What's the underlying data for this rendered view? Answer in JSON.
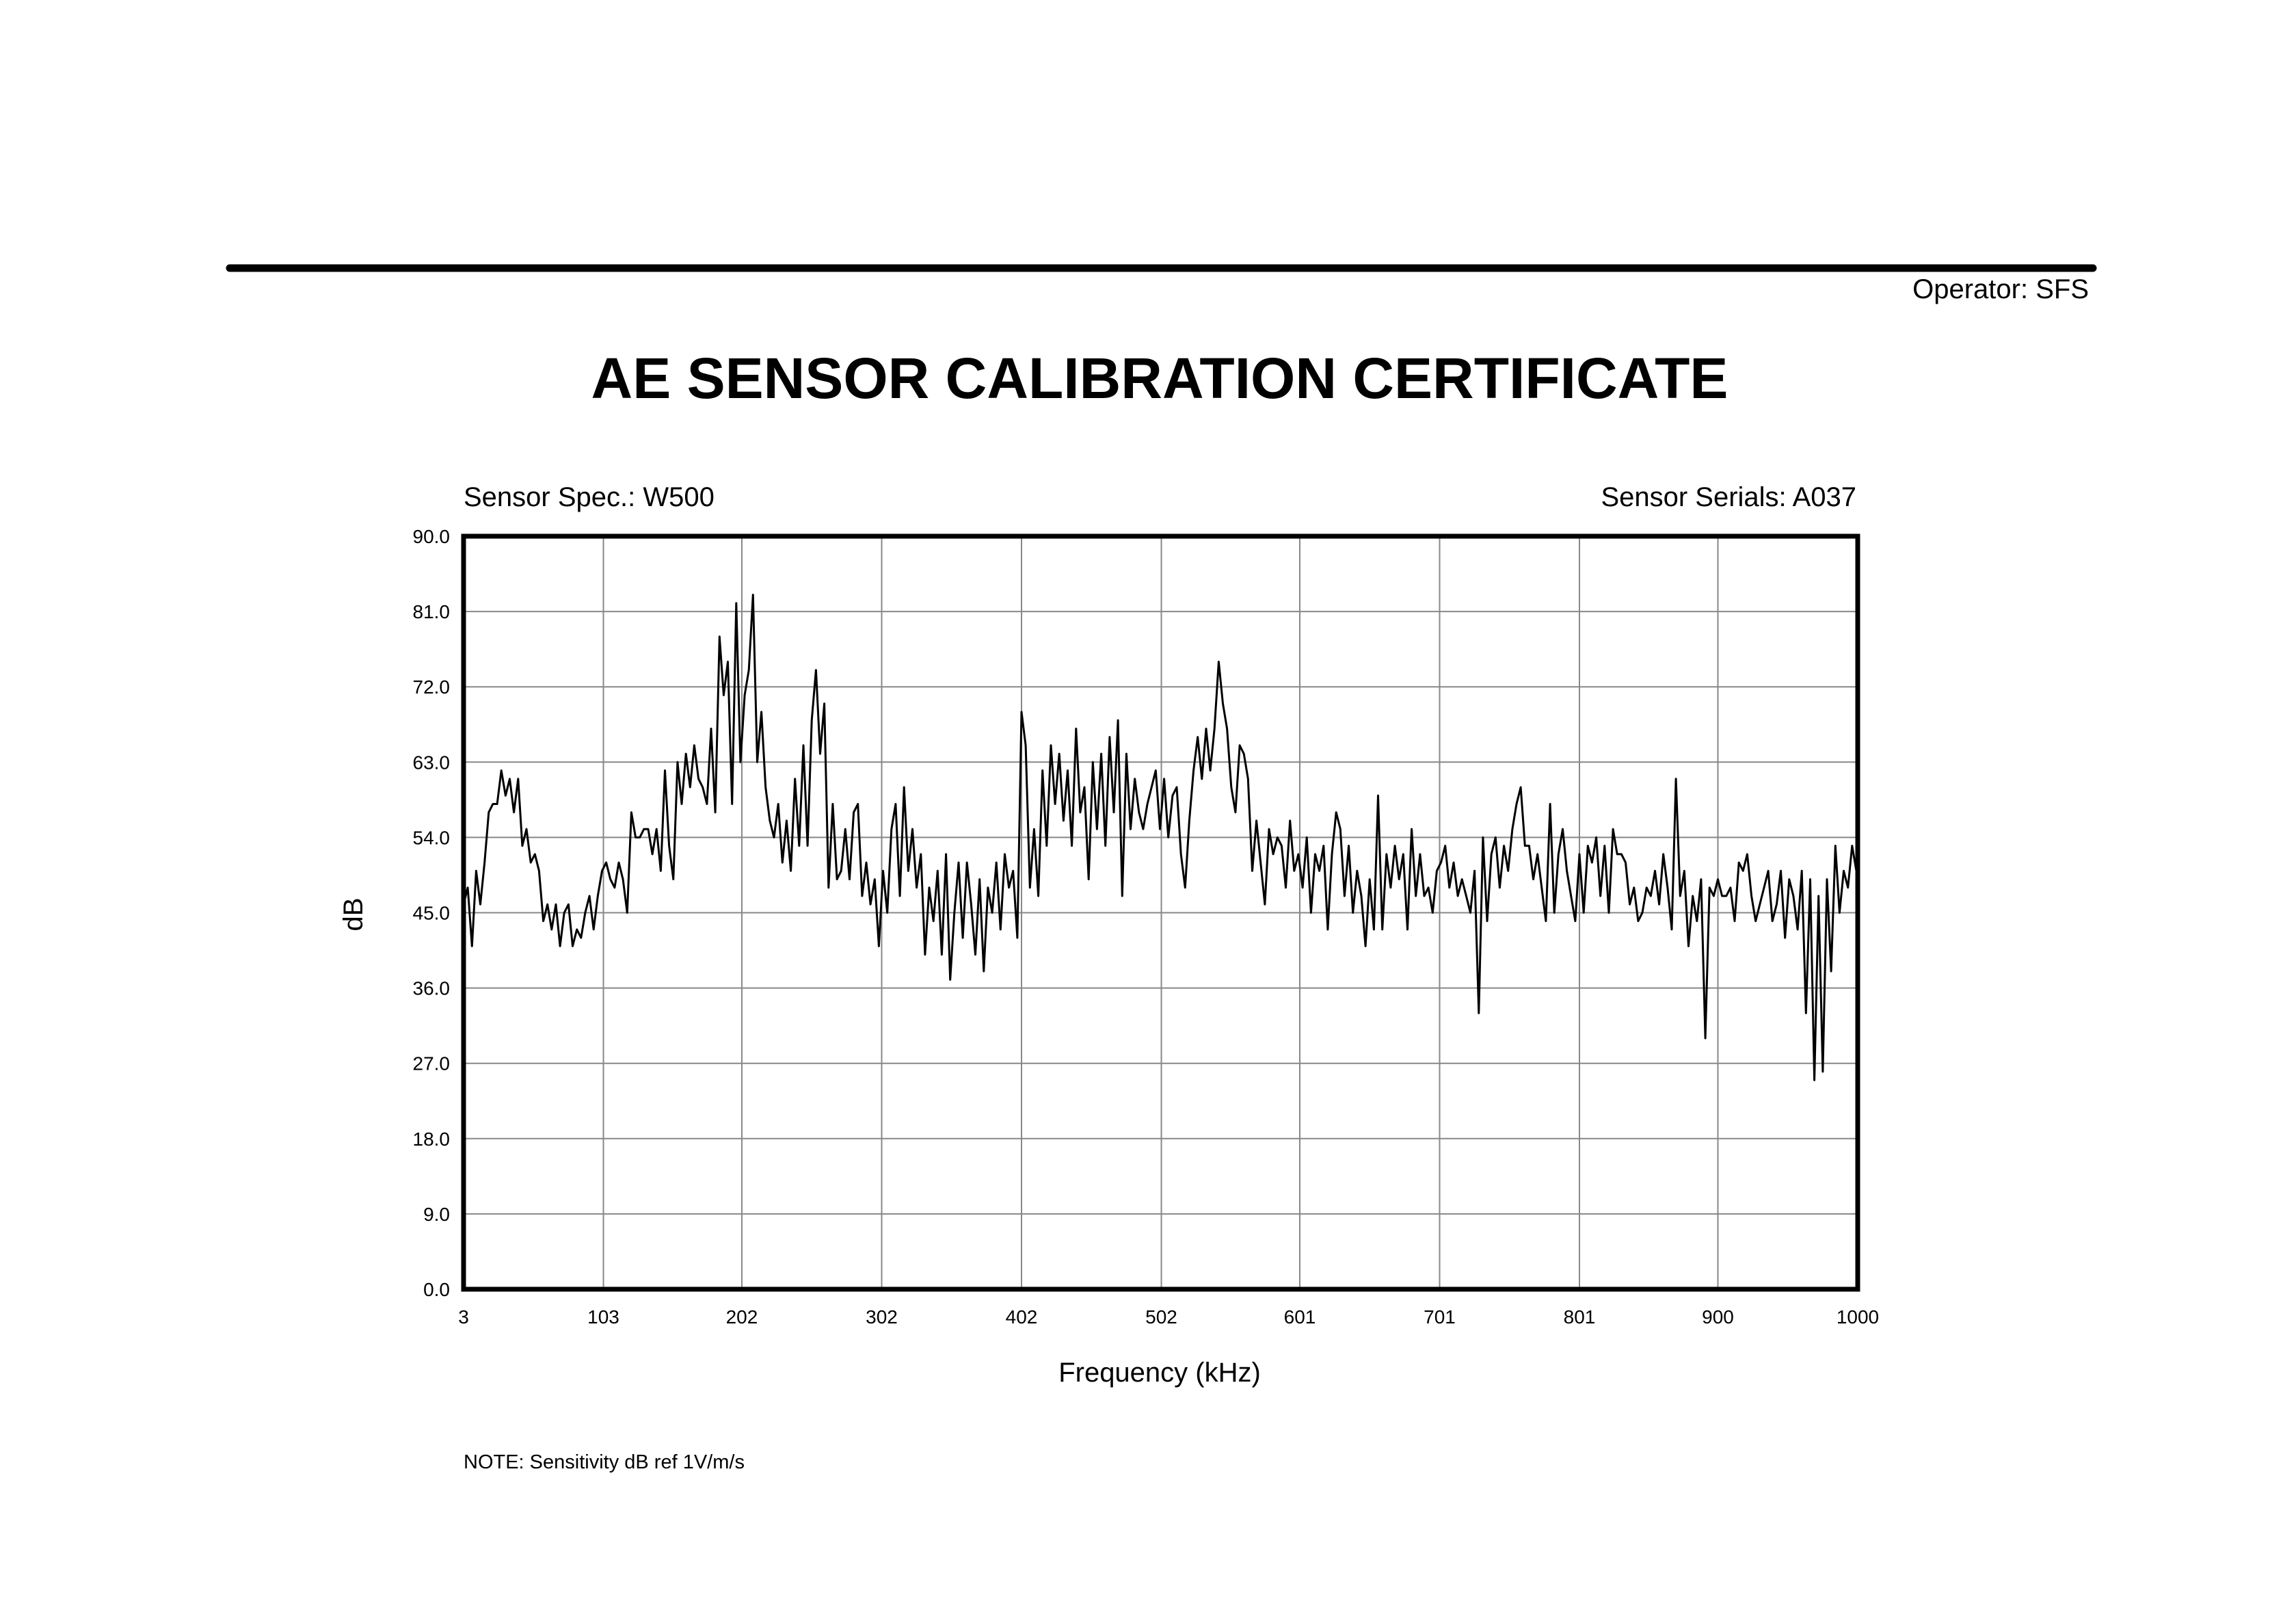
{
  "operator": "Operator: SFS",
  "sensor_spec": "Sensor Spec.: W500",
  "sensor_serials": "Sensor Serials: A037",
  "note": "NOTE:  Sensitivity dB ref 1V/m/s",
  "chart_data": {
    "type": "line",
    "title": "AE SENSOR CALIBRATION CERTIFICATE",
    "x_label": "Frequency (kHz)",
    "y_label": "dB",
    "grid": true,
    "xlim": [
      3,
      1000
    ],
    "xticks": [
      3,
      103,
      202,
      302,
      402,
      502,
      601,
      701,
      801,
      900,
      1000
    ],
    "ylim": [
      0,
      90
    ],
    "yticks": [
      {
        "value": 0,
        "label": "0.0"
      },
      {
        "value": 9,
        "label": "9.0"
      },
      {
        "value": 18,
        "label": "18.0"
      },
      {
        "value": 27,
        "label": "27.0"
      },
      {
        "value": 36,
        "label": "36.0"
      },
      {
        "value": 45,
        "label": "45.0"
      },
      {
        "value": 54,
        "label": "54.0"
      },
      {
        "value": 63,
        "label": "63.0"
      },
      {
        "value": 72,
        "label": "72.0"
      },
      {
        "value": 81,
        "label": "81.0"
      },
      {
        "value": 90,
        "label": "90.0"
      }
    ],
    "x": [
      3,
      6,
      9,
      12,
      15,
      18,
      21,
      24,
      27,
      30,
      33,
      36,
      39,
      42,
      45,
      48,
      51,
      54,
      57,
      60,
      63,
      66,
      69,
      72,
      75,
      78,
      81,
      84,
      87,
      90,
      93,
      96,
      99,
      102,
      105,
      108,
      111,
      114,
      117,
      120,
      123,
      126,
      129,
      132,
      135,
      138,
      141,
      144,
      147,
      150,
      153,
      156,
      159,
      162,
      165,
      168,
      171,
      174,
      177,
      180,
      183,
      186,
      189,
      192,
      195,
      198,
      201,
      204,
      207,
      210,
      213,
      216,
      219,
      222,
      225,
      228,
      231,
      234,
      237,
      240,
      243,
      246,
      249,
      252,
      255,
      258,
      261,
      264,
      267,
      270,
      273,
      276,
      279,
      282,
      285,
      288,
      291,
      294,
      297,
      300,
      303,
      306,
      309,
      312,
      315,
      318,
      321,
      324,
      327,
      330,
      333,
      336,
      339,
      342,
      345,
      348,
      351,
      354,
      357,
      360,
      363,
      366,
      369,
      372,
      375,
      378,
      381,
      384,
      387,
      390,
      393,
      396,
      399,
      402,
      405,
      408,
      411,
      414,
      417,
      420,
      423,
      426,
      429,
      432,
      435,
      438,
      441,
      444,
      447,
      450,
      453,
      456,
      459,
      462,
      465,
      468,
      471,
      474,
      477,
      480,
      483,
      486,
      489,
      492,
      495,
      498,
      501,
      504,
      507,
      510,
      513,
      516,
      519,
      522,
      525,
      528,
      531,
      534,
      537,
      540,
      543,
      546,
      549,
      552,
      555,
      558,
      561,
      564,
      567,
      570,
      573,
      576,
      579,
      582,
      585,
      588,
      591,
      594,
      597,
      600,
      603,
      606,
      609,
      612,
      615,
      618,
      621,
      624,
      627,
      630,
      633,
      636,
      639,
      642,
      645,
      648,
      651,
      654,
      657,
      660,
      663,
      666,
      669,
      672,
      675,
      678,
      681,
      684,
      687,
      690,
      693,
      696,
      699,
      702,
      705,
      708,
      711,
      714,
      717,
      720,
      723,
      726,
      729,
      732,
      735,
      738,
      741,
      744,
      747,
      750,
      753,
      756,
      759,
      762,
      765,
      768,
      771,
      774,
      777,
      780,
      783,
      786,
      789,
      792,
      795,
      798,
      801,
      804,
      807,
      810,
      813,
      816,
      819,
      822,
      825,
      828,
      831,
      834,
      837,
      840,
      843,
      846,
      849,
      852,
      855,
      858,
      861,
      864,
      867,
      870,
      873,
      876,
      879,
      882,
      885,
      888,
      891,
      894,
      897,
      900,
      903,
      906,
      909,
      912,
      915,
      918,
      921,
      924,
      927,
      930,
      933,
      936,
      939,
      942,
      945,
      948,
      951,
      954,
      957,
      960,
      963,
      966,
      969,
      972,
      975,
      978,
      981,
      984,
      987,
      990,
      993,
      996,
      999
    ],
    "series": [
      {
        "color": "#000000",
        "values": [
          46,
          48,
          41,
          50,
          46,
          51,
          57,
          58,
          58,
          62,
          59,
          61,
          57,
          61,
          53,
          55,
          51,
          52,
          50,
          44,
          46,
          43,
          46,
          41,
          45,
          46,
          41,
          43,
          42,
          45,
          47,
          43,
          47,
          50,
          51,
          49,
          48,
          51,
          49,
          45,
          57,
          54,
          54,
          55,
          55,
          52,
          55,
          50,
          62,
          53,
          49,
          63,
          58,
          64,
          60,
          65,
          61,
          60,
          58,
          67,
          57,
          78,
          71,
          75,
          58,
          82,
          63,
          71,
          74,
          83,
          63,
          69,
          60,
          56,
          54,
          58,
          51,
          56,
          50,
          61,
          53,
          65,
          53,
          68,
          74,
          64,
          70,
          48,
          58,
          49,
          50,
          55,
          49,
          57,
          58,
          47,
          51,
          46,
          49,
          41,
          50,
          45,
          55,
          58,
          47,
          60,
          50,
          55,
          48,
          52,
          40,
          48,
          44,
          50,
          40,
          52,
          37,
          45,
          51,
          42,
          51,
          46,
          40,
          49,
          38,
          48,
          45,
          51,
          43,
          52,
          48,
          50,
          42,
          69,
          65,
          48,
          55,
          47,
          62,
          53,
          65,
          58,
          64,
          56,
          62,
          53,
          67,
          57,
          60,
          49,
          63,
          55,
          64,
          53,
          66,
          57,
          68,
          47,
          64,
          55,
          61,
          57,
          55,
          58,
          60,
          62,
          55,
          61,
          54,
          59,
          60,
          52,
          48,
          56,
          62,
          66,
          61,
          67,
          62,
          67,
          75,
          70,
          67,
          60,
          57,
          65,
          64,
          61,
          50,
          56,
          51,
          46,
          55,
          52,
          54,
          53,
          48,
          56,
          50,
          52,
          48,
          54,
          45,
          52,
          50,
          53,
          43,
          52,
          57,
          55,
          47,
          53,
          45,
          50,
          47,
          41,
          49,
          43,
          59,
          43,
          52,
          48,
          53,
          49,
          52,
          43,
          55,
          47,
          52,
          47,
          48,
          45,
          50,
          51,
          53,
          48,
          51,
          47,
          49,
          47,
          45,
          50,
          33,
          54,
          44,
          52,
          54,
          48,
          53,
          50,
          55,
          58,
          60,
          53,
          53,
          49,
          52,
          48,
          44,
          58,
          45,
          52,
          55,
          50,
          47,
          44,
          52,
          45,
          53,
          51,
          54,
          47,
          53,
          45,
          55,
          52,
          52,
          51,
          46,
          48,
          44,
          45,
          48,
          47,
          50,
          46,
          52,
          48,
          43,
          61,
          47,
          50,
          41,
          47,
          44,
          49,
          30,
          48,
          47,
          49,
          47,
          47,
          48,
          44,
          51,
          50,
          52,
          47,
          44,
          46,
          48,
          50,
          44,
          46,
          50,
          42,
          49,
          47,
          43,
          50,
          33,
          49,
          25,
          47,
          26,
          49,
          38,
          53,
          45,
          50,
          48,
          53,
          50
        ]
      }
    ]
  }
}
